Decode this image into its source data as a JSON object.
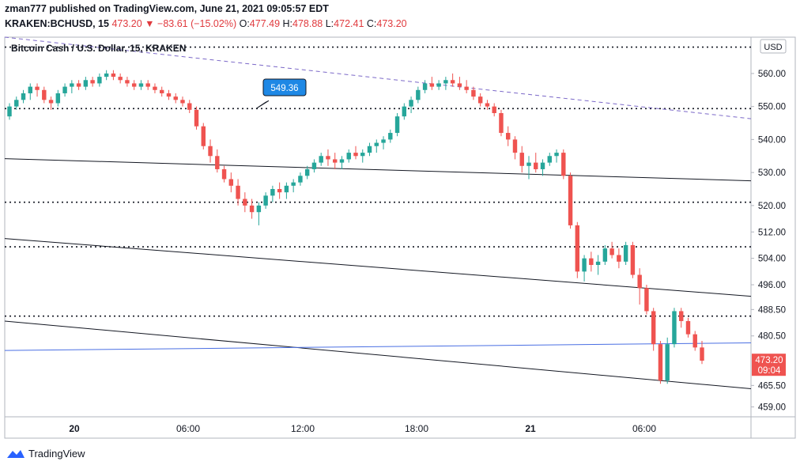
{
  "header": {
    "publisher_line": "zman777 published on TradingView.com, June 21, 2021 09:05:57 EDT",
    "symbol": "KRAKEN:BCHUSD, 15",
    "last": "473.20",
    "arrow": "▼",
    "change": "−83.61 (−15.02%)",
    "o_label": "O:",
    "o_value": "477.49",
    "h_label": "H:",
    "h_value": "478.88",
    "l_label": "L:",
    "l_value": "472.41",
    "c_label": "C:",
    "c_value": "473.20"
  },
  "footer": {
    "brand": "TradingView"
  },
  "chart_data": {
    "type": "candlestick",
    "title": "Bitcoin Cash / U.S. Dollar, 15, KRAKEN",
    "currency_label": "USD",
    "y_ticks": [
      "560.00",
      "550.00",
      "540.00",
      "530.00",
      "520.00",
      "512.00",
      "504.00",
      "496.00",
      "488.50",
      "480.50",
      "465.50",
      "459.00"
    ],
    "x_ticks": [
      "20",
      "06:00",
      "12:00",
      "18:00",
      "21",
      "06:00"
    ],
    "ylim": [
      456,
      571
    ],
    "price_label": {
      "value": "473.20",
      "time": "09:04"
    },
    "callout": {
      "value": "549.36"
    },
    "up_color": "#26a69a",
    "down_color": "#ef5350",
    "horizontal_dotted_levels": [
      568,
      549.36,
      521,
      507.5,
      486.5
    ],
    "trend_lines": [
      {
        "style": "solid",
        "color": "#131722",
        "points": [
          [
            0,
            534.2
          ],
          [
            1,
            527.5
          ]
        ]
      },
      {
        "style": "solid",
        "color": "#131722",
        "points": [
          [
            0,
            510
          ],
          [
            1,
            492.5
          ]
        ]
      },
      {
        "style": "solid",
        "color": "#131722",
        "points": [
          [
            0,
            485
          ],
          [
            1,
            464.5
          ]
        ]
      },
      {
        "style": "solid",
        "color": "#4a6fe3",
        "points": [
          [
            0,
            476.1
          ],
          [
            1,
            478.4
          ]
        ]
      },
      {
        "style": "dashed",
        "color": "#7b68c8",
        "points": [
          [
            0,
            571
          ],
          [
            1,
            546.3
          ]
        ]
      }
    ],
    "candles": [
      [
        547,
        551,
        546,
        550
      ],
      [
        550,
        553,
        549,
        552
      ],
      [
        552,
        555,
        551,
        554
      ],
      [
        554,
        557,
        552,
        556
      ],
      [
        556,
        557,
        553,
        555
      ],
      [
        555,
        556,
        551,
        552
      ],
      [
        552,
        553,
        549,
        551
      ],
      [
        551,
        555,
        550,
        554
      ],
      [
        554,
        557,
        553,
        556
      ],
      [
        556,
        558,
        554,
        557
      ],
      [
        557,
        558,
        555,
        556
      ],
      [
        556,
        559,
        555,
        558
      ],
      [
        558,
        559,
        556,
        557
      ],
      [
        557,
        560,
        556,
        559
      ],
      [
        559,
        561,
        558,
        560
      ],
      [
        560,
        561,
        558,
        559
      ],
      [
        559,
        560,
        557,
        558
      ],
      [
        558,
        559,
        556,
        557
      ],
      [
        557,
        558,
        555,
        556
      ],
      [
        556,
        558,
        555,
        557
      ],
      [
        557,
        558,
        555,
        556
      ],
      [
        556,
        557,
        554,
        555
      ],
      [
        555,
        556,
        553,
        554
      ],
      [
        554,
        555,
        552,
        553
      ],
      [
        553,
        554,
        551,
        552
      ],
      [
        552,
        553,
        550,
        551
      ],
      [
        551,
        552,
        548,
        549
      ],
      [
        549,
        550,
        543,
        544
      ],
      [
        544,
        545,
        537,
        538
      ],
      [
        538,
        540,
        533,
        535
      ],
      [
        535,
        537,
        530,
        531
      ],
      [
        531,
        532,
        527,
        528
      ],
      [
        528,
        530,
        524,
        526
      ],
      [
        526,
        528,
        520,
        522
      ],
      [
        522,
        524,
        518,
        520
      ],
      [
        520,
        522,
        516,
        518
      ],
      [
        518,
        521,
        514,
        520
      ],
      [
        520,
        524,
        519,
        523
      ],
      [
        523,
        526,
        521,
        525
      ],
      [
        525,
        527,
        522,
        524
      ],
      [
        524,
        527,
        522,
        526
      ],
      [
        526,
        528,
        524,
        527
      ],
      [
        527,
        530,
        526,
        529
      ],
      [
        529,
        532,
        528,
        531
      ],
      [
        531,
        534,
        530,
        533
      ],
      [
        533,
        536,
        532,
        535
      ],
      [
        535,
        537,
        532,
        534
      ],
      [
        534,
        536,
        531,
        533
      ],
      [
        533,
        535,
        531,
        534
      ],
      [
        534,
        537,
        533,
        536
      ],
      [
        536,
        538,
        534,
        535
      ],
      [
        535,
        537,
        533,
        536
      ],
      [
        536,
        539,
        535,
        538
      ],
      [
        538,
        540,
        536,
        539
      ],
      [
        539,
        541,
        537,
        540
      ],
      [
        540,
        543,
        539,
        542
      ],
      [
        542,
        548,
        541,
        547
      ],
      [
        547,
        551,
        546,
        550
      ],
      [
        550,
        553,
        548,
        552
      ],
      [
        552,
        556,
        551,
        555
      ],
      [
        555,
        558,
        554,
        557
      ],
      [
        557,
        559,
        555,
        556
      ],
      [
        556,
        558,
        555,
        557
      ],
      [
        557,
        559,
        555,
        558
      ],
      [
        558,
        560,
        556,
        557
      ],
      [
        557,
        559,
        555,
        556
      ],
      [
        556,
        558,
        554,
        555
      ],
      [
        555,
        556,
        552,
        553
      ],
      [
        553,
        554,
        550,
        551
      ],
      [
        551,
        552,
        549,
        550
      ],
      [
        550,
        551,
        547,
        548
      ],
      [
        548,
        549,
        541,
        542
      ],
      [
        542,
        544,
        538,
        540
      ],
      [
        540,
        541,
        534,
        536
      ],
      [
        536,
        538,
        530,
        532
      ],
      [
        532,
        535,
        528,
        533
      ],
      [
        533,
        536,
        530,
        531
      ],
      [
        531,
        534,
        529,
        533
      ],
      [
        533,
        536,
        532,
        535
      ],
      [
        535,
        537,
        533,
        536
      ],
      [
        536,
        537,
        528,
        529
      ],
      [
        529,
        530,
        513,
        514
      ],
      [
        514,
        515,
        498,
        500
      ],
      [
        500,
        505,
        497,
        504
      ],
      [
        504,
        506,
        500,
        502
      ],
      [
        502,
        505,
        499,
        503
      ],
      [
        503,
        508,
        502,
        507
      ],
      [
        507,
        509,
        504,
        505
      ],
      [
        505,
        507,
        501,
        503
      ],
      [
        503,
        509,
        502,
        508
      ],
      [
        508,
        509,
        498,
        499
      ],
      [
        499,
        501,
        490,
        495
      ],
      [
        495,
        496,
        487,
        488
      ],
      [
        488,
        489,
        476,
        478
      ],
      [
        478,
        479,
        466,
        467
      ],
      [
        467,
        480,
        466,
        478
      ],
      [
        478,
        489,
        477,
        488
      ],
      [
        488,
        489,
        483,
        485
      ],
      [
        485,
        486,
        480,
        481
      ],
      [
        481,
        482,
        476,
        477
      ],
      [
        477,
        479,
        472,
        473
      ]
    ]
  }
}
